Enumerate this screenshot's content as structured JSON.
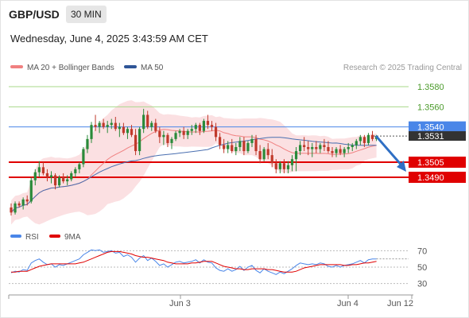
{
  "header": {
    "symbol": "GBP/USD",
    "timeframe": "30 MIN"
  },
  "timestamp": "Wednesday, June 4, 2025 3:43:59 AM CET",
  "legend": {
    "item1": "MA 20 + Bollinger Bands",
    "item2": "MA 50",
    "credit": "Research © 2025 Trading Central"
  },
  "indicator_legend": {
    "item1": "RSI",
    "item2": "9MA"
  },
  "colors": {
    "bands": "#fadadd",
    "ma20": "#f08080",
    "ma50": "#4a6fb0",
    "bull": "#2a8a3a",
    "bear": "#c0392b",
    "resistance": "#a8d88a",
    "pivot": "#e00000",
    "current": "#4a86e8",
    "rsi": "#4a86e8",
    "rsi_ma": "#e00000"
  },
  "x_labels": [
    "Jun 3",
    "Jun 4",
    "Jun 12"
  ],
  "chart_data": [
    {
      "type": "candlestick",
      "y_range": [
        1.3445,
        1.3595
      ],
      "levels": [
        {
          "value": "1.3580",
          "role": "resistance"
        },
        {
          "value": "1.3560",
          "role": "resistance"
        },
        {
          "value": "1.3540",
          "role": "pivot-current"
        },
        {
          "value": "1.3531",
          "role": "last-price"
        },
        {
          "value": "1.3505",
          "role": "support"
        },
        {
          "value": "1.3490",
          "role": "support"
        }
      ],
      "forecast": {
        "from": 1.3531,
        "to": 1.3505,
        "direction": "down"
      },
      "candles": [
        [
          1.346,
          1.3464,
          1.3452,
          1.3455
        ],
        [
          1.3455,
          1.3466,
          1.3453,
          1.3464
        ],
        [
          1.3464,
          1.3466,
          1.346,
          1.3462
        ],
        [
          1.3462,
          1.347,
          1.3458,
          1.3468
        ],
        [
          1.3468,
          1.3472,
          1.3462,
          1.3466
        ],
        [
          1.3466,
          1.349,
          1.3464,
          1.3487
        ],
        [
          1.3487,
          1.3498,
          1.3482,
          1.3495
        ],
        [
          1.3495,
          1.3506,
          1.349,
          1.35
        ],
        [
          1.35,
          1.3505,
          1.3492,
          1.3494
        ],
        [
          1.3494,
          1.3498,
          1.3486,
          1.349
        ],
        [
          1.349,
          1.3496,
          1.3484,
          1.3492
        ],
        [
          1.3492,
          1.3494,
          1.3478,
          1.3482
        ],
        [
          1.3482,
          1.3492,
          1.348,
          1.349
        ],
        [
          1.349,
          1.3494,
          1.3484,
          1.3486
        ],
        [
          1.3486,
          1.3492,
          1.3482,
          1.3488
        ],
        [
          1.3488,
          1.3496,
          1.3486,
          1.3494
        ],
        [
          1.3494,
          1.35,
          1.349,
          1.3498
        ],
        [
          1.3498,
          1.3505,
          1.3494,
          1.3503
        ],
        [
          1.3503,
          1.352,
          1.35,
          1.3518
        ],
        [
          1.3518,
          1.3532,
          1.3514,
          1.3528
        ],
        [
          1.3528,
          1.3545,
          1.3524,
          1.3542
        ],
        [
          1.3542,
          1.3552,
          1.3536,
          1.354
        ],
        [
          1.354,
          1.3546,
          1.3534,
          1.3544
        ],
        [
          1.3544,
          1.3548,
          1.3538,
          1.354
        ],
        [
          1.354,
          1.3546,
          1.3534,
          1.3542
        ],
        [
          1.3542,
          1.3548,
          1.3538,
          1.3544
        ],
        [
          1.3544,
          1.355,
          1.3536,
          1.3538
        ],
        [
          1.3538,
          1.3544,
          1.353,
          1.354
        ],
        [
          1.354,
          1.3544,
          1.3532,
          1.3534
        ],
        [
          1.3534,
          1.354,
          1.3528,
          1.3538
        ],
        [
          1.3538,
          1.3542,
          1.353,
          1.3532
        ],
        [
          1.3532,
          1.3538,
          1.3512,
          1.3516
        ],
        [
          1.3516,
          1.354,
          1.3512,
          1.3538
        ],
        [
          1.3538,
          1.3558,
          1.3534,
          1.3552
        ],
        [
          1.3552,
          1.3556,
          1.3538,
          1.354
        ],
        [
          1.354,
          1.3546,
          1.3536,
          1.3544
        ],
        [
          1.3544,
          1.3548,
          1.3534,
          1.3536
        ],
        [
          1.3536,
          1.354,
          1.3524,
          1.353
        ],
        [
          1.353,
          1.3536,
          1.3522,
          1.3532
        ],
        [
          1.3532,
          1.3534,
          1.352,
          1.3524
        ],
        [
          1.3524,
          1.353,
          1.3518,
          1.3528
        ],
        [
          1.3528,
          1.3536,
          1.3526,
          1.3534
        ],
        [
          1.3534,
          1.3538,
          1.353,
          1.3536
        ],
        [
          1.3536,
          1.354,
          1.3528,
          1.3532
        ],
        [
          1.3532,
          1.3538,
          1.3528,
          1.3536
        ],
        [
          1.3536,
          1.3542,
          1.3532,
          1.3538
        ],
        [
          1.3538,
          1.3544,
          1.3534,
          1.3542
        ],
        [
          1.3542,
          1.3544,
          1.3532,
          1.3536
        ],
        [
          1.3536,
          1.3548,
          1.3534,
          1.3546
        ],
        [
          1.3546,
          1.3552,
          1.3538,
          1.3542
        ],
        [
          1.3542,
          1.3546,
          1.3536,
          1.354
        ],
        [
          1.354,
          1.3544,
          1.3526,
          1.353
        ],
        [
          1.353,
          1.3534,
          1.3518,
          1.3522
        ],
        [
          1.3522,
          1.3528,
          1.3514,
          1.3518
        ],
        [
          1.3518,
          1.3526,
          1.3514,
          1.3522
        ],
        [
          1.3522,
          1.3528,
          1.3514,
          1.3516
        ],
        [
          1.3516,
          1.3524,
          1.3512,
          1.352
        ],
        [
          1.352,
          1.353,
          1.3516,
          1.3526
        ],
        [
          1.3526,
          1.353,
          1.3512,
          1.3516
        ],
        [
          1.3516,
          1.3526,
          1.3514,
          1.3524
        ],
        [
          1.3524,
          1.3532,
          1.352,
          1.3528
        ],
        [
          1.3528,
          1.3532,
          1.3512,
          1.3516
        ],
        [
          1.3516,
          1.3522,
          1.3504,
          1.3508
        ],
        [
          1.3508,
          1.352,
          1.3506,
          1.3518
        ],
        [
          1.3518,
          1.3524,
          1.3508,
          1.3512
        ],
        [
          1.3512,
          1.3518,
          1.35,
          1.3504
        ],
        [
          1.3504,
          1.3508,
          1.3494,
          1.3498
        ],
        [
          1.3498,
          1.3506,
          1.3494,
          1.3504
        ],
        [
          1.3504,
          1.3508,
          1.3494,
          1.3498
        ],
        [
          1.3498,
          1.3506,
          1.3494,
          1.3502
        ],
        [
          1.3502,
          1.3512,
          1.3496,
          1.3508
        ],
        [
          1.3508,
          1.352,
          1.3496,
          1.3516
        ],
        [
          1.3516,
          1.3526,
          1.3512,
          1.3522
        ],
        [
          1.3522,
          1.353,
          1.3516,
          1.352
        ],
        [
          1.352,
          1.3526,
          1.3512,
          1.3518
        ],
        [
          1.3518,
          1.3524,
          1.351,
          1.352
        ],
        [
          1.352,
          1.3526,
          1.3514,
          1.3518
        ],
        [
          1.3518,
          1.3524,
          1.3514,
          1.3522
        ],
        [
          1.3522,
          1.3528,
          1.3516,
          1.352
        ],
        [
          1.352,
          1.3526,
          1.3514,
          1.3516
        ],
        [
          1.3516,
          1.352,
          1.351,
          1.3514
        ],
        [
          1.3514,
          1.352,
          1.351,
          1.3518
        ],
        [
          1.3518,
          1.3522,
          1.3512,
          1.3514
        ],
        [
          1.3514,
          1.352,
          1.351,
          1.3518
        ],
        [
          1.3518,
          1.3524,
          1.3514,
          1.352
        ],
        [
          1.352,
          1.3524,
          1.3516,
          1.3522
        ],
        [
          1.3522,
          1.3528,
          1.3518,
          1.3526
        ],
        [
          1.3526,
          1.3532,
          1.3522,
          1.353
        ],
        [
          1.353,
          1.3532,
          1.352,
          1.3524
        ],
        [
          1.3524,
          1.3534,
          1.3522,
          1.3532
        ],
        [
          1.3532,
          1.3536,
          1.3526,
          1.3528
        ],
        [
          1.3528,
          1.3532,
          1.3526,
          1.3531
        ]
      ],
      "rsi": {
        "y_range": [
          20,
          80
        ],
        "ticks": [
          "70",
          "50",
          "30"
        ],
        "rsi_values": [
          43,
          45,
          44,
          47,
          46,
          55,
          58,
          60,
          56,
          53,
          54,
          50,
          53,
          52,
          54,
          56,
          58,
          60,
          65,
          68,
          71,
          70,
          71,
          68,
          69,
          70,
          67,
          68,
          63,
          65,
          62,
          56,
          61,
          64,
          58,
          61,
          57,
          52,
          54,
          50,
          53,
          56,
          57,
          55,
          56,
          57,
          59,
          55,
          59,
          56,
          55,
          49,
          46,
          45,
          48,
          45,
          47,
          51,
          46,
          50,
          52,
          46,
          43,
          48,
          45,
          43,
          41,
          44,
          42,
          45,
          48,
          52,
          55,
          54,
          53,
          54,
          53,
          55,
          54,
          51,
          50,
          52,
          50,
          52,
          53,
          54,
          56,
          58,
          55,
          59,
          60,
          60
        ],
        "ma_values": [
          44,
          44,
          45,
          45,
          45,
          47,
          49,
          51,
          52,
          53,
          54,
          54,
          54,
          54,
          54,
          54,
          54,
          55,
          56,
          58,
          60,
          62,
          64,
          66,
          68,
          69,
          69,
          69,
          68,
          67,
          66,
          64,
          63,
          62,
          62,
          61,
          60,
          59,
          58,
          56,
          55,
          54,
          54,
          54,
          54,
          55,
          55,
          56,
          57,
          57,
          57,
          55,
          53,
          51,
          50,
          49,
          48,
          48,
          47,
          47,
          48,
          48,
          48,
          48,
          47,
          47,
          46,
          45,
          44,
          44,
          44,
          45,
          47,
          49,
          50,
          51,
          52,
          53,
          53,
          53,
          53,
          53,
          53,
          52,
          52,
          53,
          53,
          54,
          55,
          55,
          56,
          57
        ]
      }
    }
  ]
}
